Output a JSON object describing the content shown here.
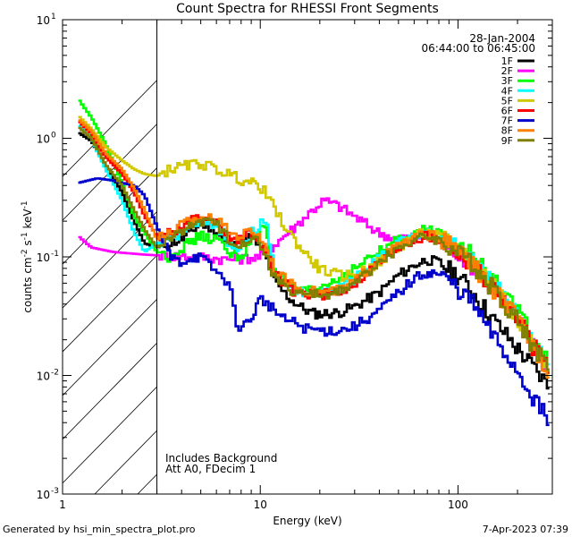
{
  "chart_data": {
    "type": "line",
    "title": "Count Spectra for RHESSI Front Segments",
    "xlabel": "Energy (keV)",
    "ylabel_main": "counts cm",
    "ylabel_exp1": "-2",
    "ylabel_mid": " s",
    "ylabel_exp2": "-1",
    "ylabel_end": " keV",
    "ylabel_exp3": "-1",
    "xscale": "log",
    "yscale": "log",
    "xlim": [
      1,
      300
    ],
    "ylim": [
      0.001,
      10
    ],
    "x_ticks": [
      {
        "value": 1,
        "label": "1"
      },
      {
        "value": 10,
        "label": "10"
      },
      {
        "value": 100,
        "label": "100"
      }
    ],
    "y_ticks": [
      {
        "value": 0.001,
        "base": "10",
        "exp": "-3"
      },
      {
        "value": 0.01,
        "base": "10",
        "exp": "-2"
      },
      {
        "value": 0.1,
        "base": "10",
        "exp": "-1"
      },
      {
        "value": 1,
        "base": "10",
        "exp": "0"
      },
      {
        "value": 10,
        "base": "10",
        "exp": "1"
      }
    ],
    "date": "28-Jan-2004",
    "time_range": "06:44:00 to 06:45:00",
    "hatched_until_energy": 3,
    "note_line1": "Includes Background",
    "note_line2": "Att A0, FDecim 1",
    "series": [
      {
        "name": "1F",
        "color": "#000000",
        "points": [
          [
            1.2,
            1.12
          ],
          [
            1.4,
            0.95
          ],
          [
            1.65,
            0.6
          ],
          [
            2.0,
            0.35
          ],
          [
            2.3,
            0.2
          ],
          [
            2.6,
            0.13
          ],
          [
            3.0,
            0.12
          ],
          [
            4.0,
            0.14
          ],
          [
            5.0,
            0.19
          ],
          [
            6.0,
            0.17
          ],
          [
            7.0,
            0.12
          ],
          [
            8.0,
            0.13
          ],
          [
            9.0,
            0.15
          ],
          [
            10.0,
            0.12
          ],
          [
            11.0,
            0.09
          ],
          [
            12.0,
            0.06
          ],
          [
            14.0,
            0.045
          ],
          [
            16.0,
            0.038
          ],
          [
            18.0,
            0.034
          ],
          [
            20.0,
            0.033
          ],
          [
            25.0,
            0.034
          ],
          [
            30.0,
            0.038
          ],
          [
            40.0,
            0.05
          ],
          [
            50.0,
            0.07
          ],
          [
            60.0,
            0.085
          ],
          [
            70.0,
            0.095
          ],
          [
            80.0,
            0.09
          ],
          [
            100.0,
            0.07
          ],
          [
            120.0,
            0.05
          ],
          [
            150.0,
            0.03
          ],
          [
            200.0,
            0.017
          ],
          [
            250.0,
            0.011
          ],
          [
            290.0,
            0.008
          ]
        ]
      },
      {
        "name": "2F",
        "color": "#ff00ff",
        "points": [
          [
            1.2,
            0.15
          ],
          [
            1.4,
            0.12
          ],
          [
            1.8,
            0.11
          ],
          [
            2.5,
            0.105
          ],
          [
            3.0,
            0.103
          ],
          [
            5.0,
            0.1
          ],
          [
            7.0,
            0.095
          ],
          [
            10.0,
            0.1
          ],
          [
            12.0,
            0.13
          ],
          [
            15.0,
            0.18
          ],
          [
            18.0,
            0.24
          ],
          [
            21.0,
            0.3
          ],
          [
            25.0,
            0.27
          ],
          [
            30.0,
            0.22
          ],
          [
            40.0,
            0.16
          ],
          [
            50.0,
            0.14
          ],
          [
            60.0,
            0.15
          ],
          [
            70.0,
            0.15
          ],
          [
            80.0,
            0.14
          ],
          [
            100.0,
            0.11
          ],
          [
            130.0,
            0.075
          ],
          [
            160.0,
            0.05
          ],
          [
            200.0,
            0.03
          ],
          [
            250.0,
            0.017
          ],
          [
            290.0,
            0.011
          ]
        ]
      },
      {
        "name": "3F",
        "color": "#00ff00",
        "points": [
          [
            1.2,
            2.15
          ],
          [
            1.4,
            1.5
          ],
          [
            1.65,
            0.9
          ],
          [
            2.0,
            0.42
          ],
          [
            2.3,
            0.22
          ],
          [
            2.6,
            0.16
          ],
          [
            3.0,
            0.11
          ],
          [
            3.5,
            0.1
          ],
          [
            4.0,
            0.12
          ],
          [
            5.0,
            0.15
          ],
          [
            6.0,
            0.14
          ],
          [
            7.0,
            0.11
          ],
          [
            8.0,
            0.1
          ],
          [
            9.0,
            0.13
          ],
          [
            10.0,
            0.16
          ],
          [
            10.5,
            0.2
          ],
          [
            11.0,
            0.13
          ],
          [
            12.0,
            0.08
          ],
          [
            14.0,
            0.055
          ],
          [
            17.0,
            0.05
          ],
          [
            20.0,
            0.055
          ],
          [
            25.0,
            0.065
          ],
          [
            30.0,
            0.08
          ],
          [
            40.0,
            0.11
          ],
          [
            50.0,
            0.14
          ],
          [
            60.0,
            0.16
          ],
          [
            70.0,
            0.17
          ],
          [
            80.0,
            0.16
          ],
          [
            100.0,
            0.13
          ],
          [
            120.0,
            0.1
          ],
          [
            150.0,
            0.065
          ],
          [
            200.0,
            0.035
          ],
          [
            250.0,
            0.018
          ],
          [
            290.0,
            0.012
          ]
        ]
      },
      {
        "name": "4F",
        "color": "#00ffff",
        "points": [
          [
            1.2,
            1.3
          ],
          [
            1.4,
            1.0
          ],
          [
            1.65,
            0.55
          ],
          [
            2.0,
            0.3
          ],
          [
            2.3,
            0.16
          ],
          [
            2.6,
            0.11
          ],
          [
            3.0,
            0.13
          ],
          [
            4.0,
            0.16
          ],
          [
            5.0,
            0.2
          ],
          [
            6.0,
            0.19
          ],
          [
            7.0,
            0.13
          ],
          [
            8.0,
            0.12
          ],
          [
            9.0,
            0.16
          ],
          [
            10.0,
            0.18
          ],
          [
            10.7,
            0.22
          ],
          [
            11.0,
            0.14
          ],
          [
            12.0,
            0.07
          ],
          [
            15.0,
            0.05
          ],
          [
            20.0,
            0.05
          ],
          [
            25.0,
            0.055
          ],
          [
            30.0,
            0.065
          ],
          [
            40.0,
            0.1
          ],
          [
            50.0,
            0.13
          ],
          [
            60.0,
            0.15
          ],
          [
            70.0,
            0.16
          ],
          [
            80.0,
            0.15
          ],
          [
            100.0,
            0.12
          ],
          [
            120.0,
            0.09
          ],
          [
            150.0,
            0.06
          ],
          [
            200.0,
            0.032
          ],
          [
            250.0,
            0.017
          ],
          [
            290.0,
            0.012
          ]
        ]
      },
      {
        "name": "5F",
        "color": "#d2c800",
        "points": [
          [
            1.2,
            1.55
          ],
          [
            1.4,
            1.2
          ],
          [
            1.65,
            0.85
          ],
          [
            2.0,
            0.65
          ],
          [
            2.3,
            0.55
          ],
          [
            2.6,
            0.5
          ],
          [
            3.0,
            0.48
          ],
          [
            3.5,
            0.55
          ],
          [
            4.5,
            0.6
          ],
          [
            5.0,
            0.62
          ],
          [
            6.0,
            0.55
          ],
          [
            7.0,
            0.5
          ],
          [
            8.0,
            0.45
          ],
          [
            9.0,
            0.42
          ],
          [
            10.0,
            0.4
          ],
          [
            11.0,
            0.32
          ],
          [
            12.0,
            0.24
          ],
          [
            14.0,
            0.16
          ],
          [
            16.0,
            0.12
          ],
          [
            18.0,
            0.095
          ],
          [
            20.0,
            0.08
          ],
          [
            22.0,
            0.075
          ],
          [
            25.0,
            0.07
          ],
          [
            30.0,
            0.07
          ],
          [
            40.0,
            0.09
          ],
          [
            50.0,
            0.12
          ],
          [
            60.0,
            0.15
          ],
          [
            70.0,
            0.16
          ],
          [
            80.0,
            0.15
          ],
          [
            100.0,
            0.12
          ],
          [
            120.0,
            0.09
          ],
          [
            150.0,
            0.06
          ],
          [
            200.0,
            0.032
          ],
          [
            250.0,
            0.017
          ],
          [
            290.0,
            0.011
          ]
        ]
      },
      {
        "name": "6F",
        "color": "#ff0000",
        "points": [
          [
            1.2,
            1.4
          ],
          [
            1.4,
            1.1
          ],
          [
            1.65,
            0.7
          ],
          [
            2.0,
            0.5
          ],
          [
            2.3,
            0.35
          ],
          [
            2.6,
            0.22
          ],
          [
            3.0,
            0.15
          ],
          [
            3.5,
            0.16
          ],
          [
            4.0,
            0.18
          ],
          [
            5.0,
            0.22
          ],
          [
            6.0,
            0.2
          ],
          [
            7.0,
            0.15
          ],
          [
            8.0,
            0.14
          ],
          [
            9.0,
            0.16
          ],
          [
            10.0,
            0.14
          ],
          [
            11.0,
            0.1
          ],
          [
            12.0,
            0.07
          ],
          [
            15.0,
            0.05
          ],
          [
            20.0,
            0.048
          ],
          [
            25.0,
            0.05
          ],
          [
            30.0,
            0.06
          ],
          [
            40.0,
            0.09
          ],
          [
            50.0,
            0.12
          ],
          [
            60.0,
            0.14
          ],
          [
            70.0,
            0.15
          ],
          [
            80.0,
            0.14
          ],
          [
            100.0,
            0.11
          ],
          [
            120.0,
            0.085
          ],
          [
            150.0,
            0.055
          ],
          [
            200.0,
            0.03
          ],
          [
            250.0,
            0.016
          ],
          [
            290.0,
            0.011
          ]
        ]
      },
      {
        "name": "7F",
        "color": "#0000cc",
        "points": [
          [
            1.2,
            0.42
          ],
          [
            1.5,
            0.46
          ],
          [
            1.8,
            0.44
          ],
          [
            2.0,
            0.42
          ],
          [
            2.3,
            0.4
          ],
          [
            2.6,
            0.33
          ],
          [
            3.0,
            0.18
          ],
          [
            3.5,
            0.1
          ],
          [
            4.0,
            0.09
          ],
          [
            4.5,
            0.1
          ],
          [
            5.0,
            0.1
          ],
          [
            6.0,
            0.075
          ],
          [
            7.0,
            0.06
          ],
          [
            7.5,
            0.03
          ],
          [
            8.0,
            0.025
          ],
          [
            9.0,
            0.03
          ],
          [
            10.0,
            0.045
          ],
          [
            11.0,
            0.04
          ],
          [
            12.0,
            0.035
          ],
          [
            13.0,
            0.03
          ],
          [
            15.0,
            0.028
          ],
          [
            17.0,
            0.025
          ],
          [
            20.0,
            0.024
          ],
          [
            25.0,
            0.024
          ],
          [
            30.0,
            0.026
          ],
          [
            40.0,
            0.035
          ],
          [
            50.0,
            0.05
          ],
          [
            60.0,
            0.065
          ],
          [
            70.0,
            0.075
          ],
          [
            80.0,
            0.072
          ],
          [
            100.0,
            0.055
          ],
          [
            120.0,
            0.04
          ],
          [
            150.0,
            0.022
          ],
          [
            200.0,
            0.011
          ],
          [
            250.0,
            0.006
          ],
          [
            290.0,
            0.004
          ]
        ]
      },
      {
        "name": "8F",
        "color": "#ff8000",
        "points": [
          [
            1.2,
            1.45
          ],
          [
            1.4,
            1.15
          ],
          [
            1.65,
            0.75
          ],
          [
            2.0,
            0.55
          ],
          [
            2.3,
            0.38
          ],
          [
            2.6,
            0.25
          ],
          [
            3.0,
            0.14
          ],
          [
            3.5,
            0.16
          ],
          [
            4.0,
            0.19
          ],
          [
            5.0,
            0.22
          ],
          [
            6.0,
            0.21
          ],
          [
            7.0,
            0.16
          ],
          [
            8.0,
            0.15
          ],
          [
            9.0,
            0.17
          ],
          [
            10.0,
            0.15
          ],
          [
            11.0,
            0.11
          ],
          [
            12.0,
            0.075
          ],
          [
            15.0,
            0.055
          ],
          [
            20.0,
            0.05
          ],
          [
            25.0,
            0.052
          ],
          [
            30.0,
            0.062
          ],
          [
            40.0,
            0.095
          ],
          [
            50.0,
            0.125
          ],
          [
            60.0,
            0.145
          ],
          [
            70.0,
            0.155
          ],
          [
            80.0,
            0.145
          ],
          [
            100.0,
            0.115
          ],
          [
            120.0,
            0.085
          ],
          [
            150.0,
            0.055
          ],
          [
            200.0,
            0.03
          ],
          [
            250.0,
            0.016
          ],
          [
            290.0,
            0.011
          ]
        ]
      },
      {
        "name": "9F",
        "color": "#808000",
        "points": [
          [
            1.2,
            1.25
          ],
          [
            1.4,
            1.0
          ],
          [
            1.65,
            0.6
          ],
          [
            2.0,
            0.4
          ],
          [
            2.3,
            0.25
          ],
          [
            2.6,
            0.17
          ],
          [
            3.0,
            0.12
          ],
          [
            3.5,
            0.14
          ],
          [
            4.0,
            0.17
          ],
          [
            5.0,
            0.2
          ],
          [
            6.0,
            0.19
          ],
          [
            7.0,
            0.14
          ],
          [
            8.0,
            0.13
          ],
          [
            9.0,
            0.15
          ],
          [
            10.0,
            0.13
          ],
          [
            11.0,
            0.09
          ],
          [
            12.0,
            0.065
          ],
          [
            15.0,
            0.05
          ],
          [
            20.0,
            0.048
          ],
          [
            25.0,
            0.05
          ],
          [
            30.0,
            0.06
          ],
          [
            40.0,
            0.09
          ],
          [
            50.0,
            0.12
          ],
          [
            60.0,
            0.14
          ],
          [
            70.0,
            0.15
          ],
          [
            80.0,
            0.14
          ],
          [
            100.0,
            0.11
          ],
          [
            120.0,
            0.085
          ],
          [
            150.0,
            0.055
          ],
          [
            200.0,
            0.03
          ],
          [
            250.0,
            0.016
          ],
          [
            290.0,
            0.011
          ]
        ]
      }
    ]
  },
  "footer": {
    "generated_by": "Generated by hsi_min_spectra_plot.pro",
    "timestamp": "7-Apr-2023 07:39"
  }
}
